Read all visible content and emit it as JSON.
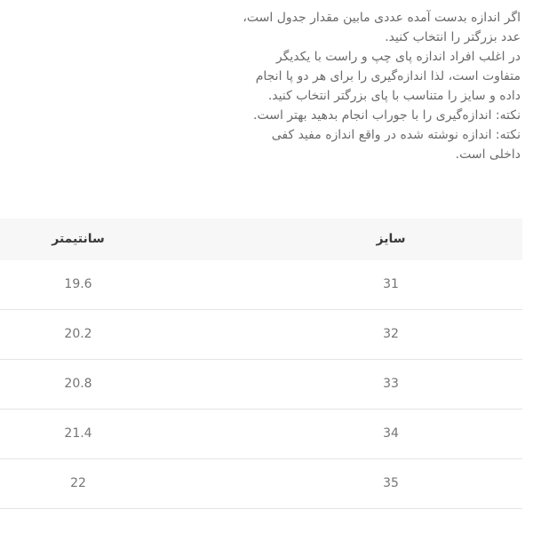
{
  "instructions": {
    "lines": [
      "اگر اندازه بدست آمده عددی مابین مقدار جدول است،",
      "عدد بزرگتر را انتخاب کنید.",
      "در اغلب افراد اندازه پای چپ و راست با یکدیگر",
      "متفاوت است، لذا اندازه‌گیری را برای هر دو پا انجام",
      "داده و سایز را متناسب با پای بزرگتر انتخاب کنید.",
      "نکته: اندازه‌گیری را با جوراب انجام بدهید بهتر است.",
      "نکته: اندازه نوشته شده در واقع اندازه مفید کفی",
      "داخلی است."
    ]
  },
  "size_table": {
    "headers": {
      "size": "سایز",
      "cm": "سانتیمتر"
    },
    "rows": [
      {
        "cm": "19.6",
        "size": "31"
      },
      {
        "cm": "20.2",
        "size": "32"
      },
      {
        "cm": "20.8",
        "size": "33"
      },
      {
        "cm": "21.4",
        "size": "34"
      },
      {
        "cm": "22",
        "size": "35"
      }
    ]
  },
  "colors": {
    "page_background": "#ffffff",
    "instruction_text": "#6b6b6b",
    "header_background": "#f7f7f7",
    "header_text": "#3a3a3a",
    "cell_text": "#757575",
    "row_border": "#e4e4e4"
  }
}
